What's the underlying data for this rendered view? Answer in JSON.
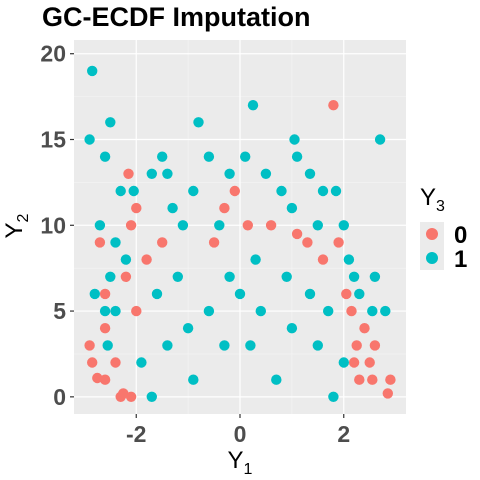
{
  "chart_data": {
    "type": "scatter",
    "title": "GC-ECDF Imputation",
    "xlabel": "Y",
    "xlabel_sub": "1",
    "ylabel": "Y",
    "ylabel_sub": "2",
    "xlim": [
      -3.2,
      3.2
    ],
    "ylim": [
      -1,
      20.8
    ],
    "x_ticks": [
      -2,
      0,
      2
    ],
    "x_tick_labels": [
      "-2",
      "0",
      "2"
    ],
    "y_ticks": [
      0,
      5,
      10,
      15,
      20
    ],
    "y_tick_labels": [
      "0",
      "5",
      "10",
      "15",
      "20"
    ],
    "grid": true,
    "panel_background": "#ebebeb",
    "legend_position": "right",
    "legend_title": "Y",
    "legend_title_sub": "3",
    "series": [
      {
        "name": "0",
        "color": "#F8766D",
        "points": [
          [
            1.8,
            17
          ],
          [
            -2.15,
            13
          ],
          [
            -0.1,
            12
          ],
          [
            -2.0,
            11
          ],
          [
            -2.7,
            9
          ],
          [
            -2.1,
            10
          ],
          [
            1.9,
            9
          ],
          [
            -2.6,
            6
          ],
          [
            -2.2,
            7
          ],
          [
            -2.0,
            5
          ],
          [
            -2.6,
            4
          ],
          [
            -2.9,
            3
          ],
          [
            -2.85,
            2
          ],
          [
            -2.6,
            1
          ],
          [
            -2.75,
            1.1
          ],
          [
            -2.4,
            2
          ],
          [
            -2.3,
            0
          ],
          [
            -2.25,
            0.2
          ],
          [
            -2.1,
            0
          ],
          [
            2.55,
            1
          ],
          [
            2.85,
            0.2
          ],
          [
            2.9,
            1
          ],
          [
            2.6,
            3
          ],
          [
            2.5,
            2
          ],
          [
            2.3,
            1
          ],
          [
            2.2,
            2
          ],
          [
            2.25,
            3
          ],
          [
            2.4,
            4
          ],
          [
            2.15,
            5
          ],
          [
            2.05,
            6
          ],
          [
            -0.3,
            11
          ],
          [
            0.15,
            10
          ],
          [
            -0.5,
            9
          ],
          [
            0.6,
            10
          ],
          [
            1.1,
            9.5
          ],
          [
            -1.8,
            8
          ],
          [
            1.6,
            8
          ],
          [
            -1.5,
            9
          ],
          [
            1.3,
            9
          ]
        ]
      },
      {
        "name": "1",
        "color": "#00BFC4",
        "points": [
          [
            -2.85,
            19
          ],
          [
            -2.9,
            15
          ],
          [
            -2.5,
            16
          ],
          [
            -2.6,
            14
          ],
          [
            -0.8,
            16
          ],
          [
            0.25,
            17
          ],
          [
            2.7,
            15
          ],
          [
            1.05,
            15
          ],
          [
            -1.5,
            14
          ],
          [
            -1.4,
            13
          ],
          [
            -0.6,
            14
          ],
          [
            -0.2,
            13
          ],
          [
            0.1,
            14
          ],
          [
            0.5,
            13
          ],
          [
            1.1,
            14
          ],
          [
            1.35,
            13
          ],
          [
            1.6,
            12
          ],
          [
            1.85,
            12
          ],
          [
            -2.3,
            12
          ],
          [
            -2.05,
            12
          ],
          [
            -1.7,
            13
          ],
          [
            -2.7,
            10
          ],
          [
            -2.4,
            9
          ],
          [
            -2.5,
            7
          ],
          [
            -2.2,
            8
          ],
          [
            -2.8,
            6
          ],
          [
            -2.55,
            3
          ],
          [
            -2.6,
            5
          ],
          [
            -2.4,
            5
          ],
          [
            2.55,
            5
          ],
          [
            2.8,
            5
          ],
          [
            2.3,
            6
          ],
          [
            2.6,
            7
          ],
          [
            2.1,
            8
          ],
          [
            2.2,
            7
          ],
          [
            2.0,
            10
          ],
          [
            1.5,
            10
          ],
          [
            1.0,
            11
          ],
          [
            -1.3,
            11
          ],
          [
            -0.9,
            12
          ],
          [
            0.8,
            12
          ],
          [
            -1.1,
            10
          ],
          [
            -0.4,
            10
          ],
          [
            0.3,
            8
          ],
          [
            -0.2,
            7
          ],
          [
            0.9,
            7
          ],
          [
            1.35,
            6
          ],
          [
            1.7,
            5
          ],
          [
            -1.2,
            7
          ],
          [
            -1.6,
            6
          ],
          [
            -0.6,
            5
          ],
          [
            0.4,
            5
          ],
          [
            -1.0,
            4
          ],
          [
            1.0,
            4
          ],
          [
            -0.3,
            3
          ],
          [
            0.2,
            3
          ],
          [
            1.5,
            3
          ],
          [
            -1.4,
            3
          ],
          [
            -1.9,
            2
          ],
          [
            2.0,
            2
          ],
          [
            -0.9,
            1
          ],
          [
            0.7,
            1
          ],
          [
            -1.7,
            0
          ],
          [
            1.8,
            0
          ],
          [
            0.0,
            6
          ]
        ]
      }
    ]
  }
}
